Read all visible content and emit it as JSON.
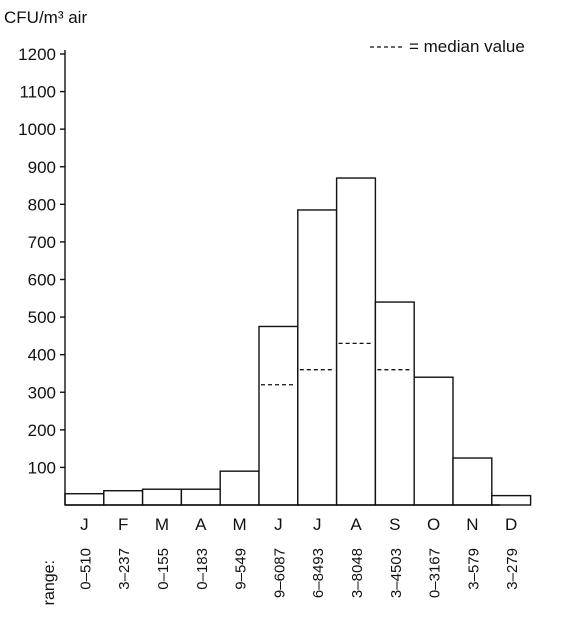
{
  "chart_data": {
    "type": "bar",
    "ylabel": "CFU/m³ air",
    "legend": {
      "label": "= median value",
      "position": "top-right"
    },
    "categories": [
      "J",
      "F",
      "M",
      "A",
      "M",
      "J",
      "J",
      "A",
      "S",
      "O",
      "N",
      "D"
    ],
    "values": [
      30,
      38,
      42,
      42,
      90,
      475,
      785,
      870,
      540,
      340,
      125,
      25
    ],
    "median_values": [
      null,
      null,
      null,
      null,
      null,
      320,
      360,
      430,
      360,
      null,
      null,
      null
    ],
    "ylim": [
      0,
      1200
    ],
    "yticks": [
      100,
      200,
      300,
      400,
      500,
      600,
      700,
      800,
      900,
      1000,
      1100,
      1200
    ],
    "grid": false,
    "range_title": "range:",
    "ranges": [
      "0–510",
      "3–237",
      "0–155",
      "0–183",
      "9–549",
      "9–6087",
      "6–8493",
      "3–8048",
      "3–4503",
      "0–3167",
      "3–579",
      "3–279"
    ]
  }
}
